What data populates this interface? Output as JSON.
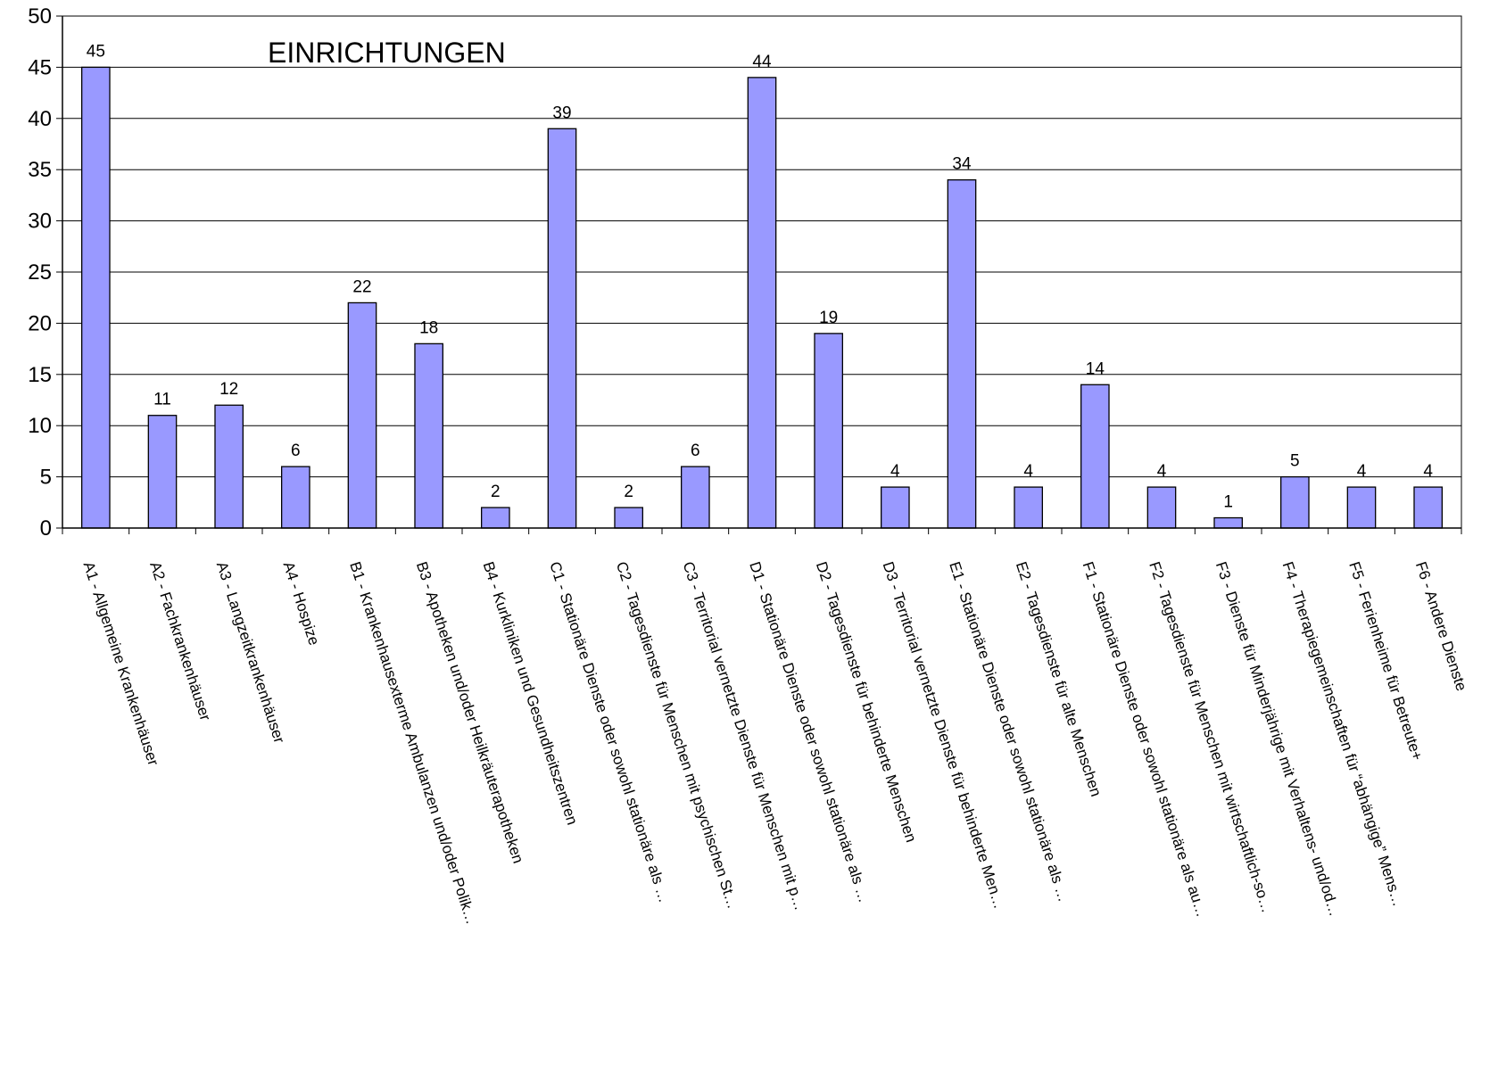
{
  "chart_data": {
    "type": "bar",
    "title": "EINRICHTUNGEN",
    "xlabel": "",
    "ylabel": "",
    "ylim": [
      0,
      50
    ],
    "yticks": [
      0,
      5,
      10,
      15,
      20,
      25,
      30,
      35,
      40,
      45,
      50
    ],
    "grid": true,
    "legend": "none",
    "bar_color": "#9999ff",
    "categories": [
      "A1 - Allgemeine Krankenhäuser",
      "A2 - Fachkrankenhäuser",
      "A3 - Langzeitkrankenhäuser",
      "A4 - Hospize",
      "B1 - Krankenhausexterme Ambulanzen und/oder Polik…",
      "B3 - Apotheken und/oder Heilkräuterapotheken",
      "B4 - Kurkliniken und Gesundheitszentren",
      "C1 - Stationäre Dienste oder sowohl stationäre als …",
      "C2 - Tagesdienste für Menschen mit psychischen St…",
      "C3 - Territorial vernetzte Dienste für Menschen mit p…",
      "D1 - Stationäre Dienste oder sowohl stationäre als …",
      "D2 - Tagesdienste für behinderte Menschen",
      "D3 - Territorial vernetzte Dienste für behinderte Men…",
      "E1 - Stationäre Dienste oder sowohl stationäre als …",
      "E2 - Tagesdienste für alte Menschen",
      "F1 - Stationäre Dienste oder sowohl stationäre als au…",
      "F2 - Tagesdienste für Menschen mit wirtschaftlich-so…",
      "F3 - Dienste für Minderjährige mit Verhaltens- und/od…",
      "F4 - Therapiegemeinschaften für “abhängige” Mens…",
      "F5 - Ferienheime für Betreute+",
      "F6 - Andere Dienste"
    ],
    "values": [
      45,
      11,
      12,
      6,
      22,
      18,
      2,
      39,
      2,
      6,
      44,
      19,
      4,
      34,
      4,
      14,
      4,
      1,
      5,
      4,
      4
    ]
  }
}
